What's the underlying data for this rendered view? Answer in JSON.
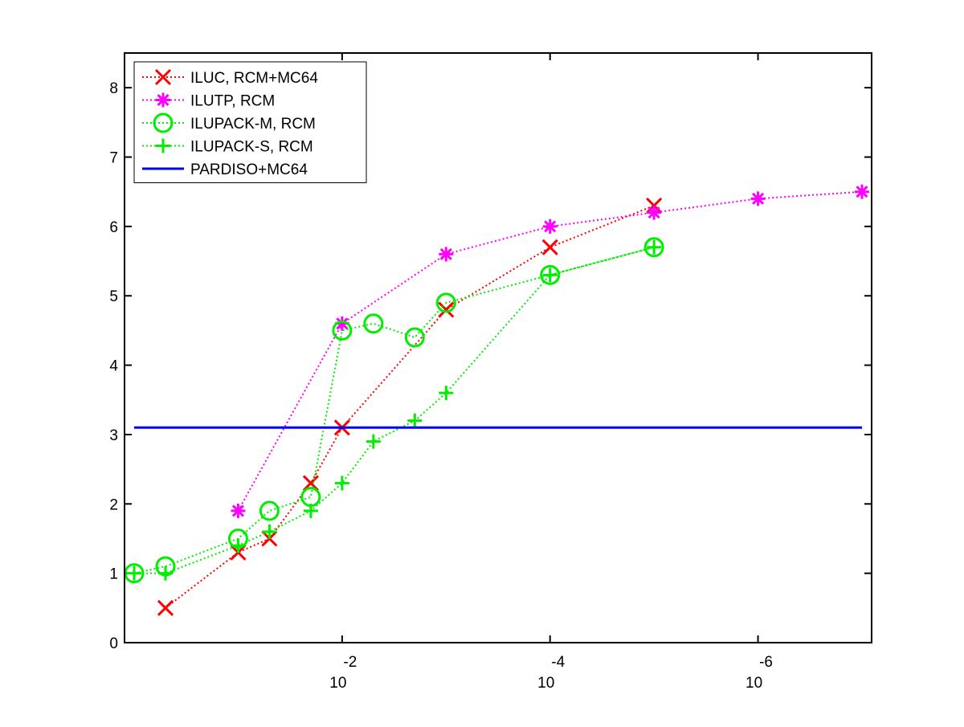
{
  "chart_data": {
    "type": "line",
    "title": "",
    "xlabel": "",
    "ylabel": "",
    "x_scale": "log-reversed",
    "xlim": [
      1,
      1e-07
    ],
    "ylim": [
      0,
      8.5
    ],
    "yticks": [
      "0",
      "1",
      "2",
      "3",
      "4",
      "5",
      "6",
      "7",
      "8"
    ],
    "ytick_values": [
      0,
      1,
      2,
      3,
      4,
      5,
      6,
      7,
      8
    ],
    "xticks": [
      {
        "value": 0.01,
        "base": "10",
        "exponent": "-2"
      },
      {
        "value": 0.0001,
        "base": "10",
        "exponent": "-4"
      },
      {
        "value": 1e-06,
        "base": "10",
        "exponent": "-6"
      }
    ],
    "grid": false,
    "legend_position": "top-left",
    "series": [
      {
        "name": "ILUC, RCM+MC64",
        "color": "#ff0000",
        "marker": "x",
        "line": "dotted",
        "x": [
          0.5,
          0.1,
          0.05,
          0.02,
          0.01,
          0.001,
          0.0001,
          1e-05
        ],
        "y": [
          0.5,
          1.3,
          1.5,
          2.3,
          3.1,
          4.8,
          5.7,
          6.3
        ]
      },
      {
        "name": "ILUTP, RCM",
        "color": "#ff00ff",
        "marker": "asterisk",
        "line": "dotted",
        "x": [
          0.1,
          0.01,
          0.001,
          0.0001,
          1e-05,
          1e-06,
          1e-07
        ],
        "y": [
          1.9,
          4.6,
          5.6,
          6.0,
          6.2,
          6.4,
          6.5
        ]
      },
      {
        "name": "ILUPACK-M, RCM",
        "color": "#00ee00",
        "marker": "circle",
        "line": "dotted",
        "x": [
          1,
          0.5,
          0.1,
          0.05,
          0.02,
          0.01,
          0.005,
          0.002,
          0.001,
          0.0001,
          1e-05
        ],
        "y": [
          1.0,
          1.1,
          1.5,
          1.9,
          2.1,
          4.5,
          4.6,
          4.4,
          4.9,
          5.3,
          5.7
        ]
      },
      {
        "name": "ILUPACK-S, RCM",
        "color": "#00ee00",
        "marker": "plus",
        "line": "dotted",
        "x": [
          1,
          0.5,
          0.1,
          0.05,
          0.02,
          0.01,
          0.005,
          0.002,
          0.001,
          0.0001,
          1e-05
        ],
        "y": [
          1.0,
          1.0,
          1.4,
          1.6,
          1.9,
          2.3,
          2.9,
          3.2,
          3.6,
          5.3,
          5.7
        ]
      },
      {
        "name": "PARDISO+MC64",
        "color": "#0000ff",
        "marker": "none",
        "line": "solid",
        "x": [
          1,
          1e-07
        ],
        "y": [
          3.1,
          3.1
        ]
      }
    ]
  }
}
